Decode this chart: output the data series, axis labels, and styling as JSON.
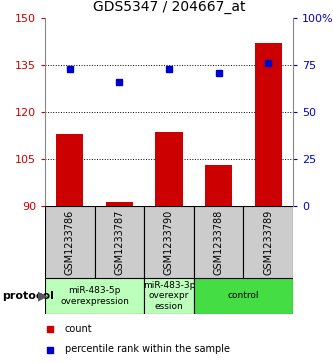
{
  "title": "GDS5347 / 204667_at",
  "samples": [
    "GSM1233786",
    "GSM1233787",
    "GSM1233790",
    "GSM1233788",
    "GSM1233789"
  ],
  "count_values": [
    113.0,
    91.2,
    113.5,
    103.0,
    142.0
  ],
  "percentile_values": [
    73,
    66,
    73,
    71,
    76
  ],
  "left_ylim": [
    90,
    150
  ],
  "right_ylim": [
    0,
    100
  ],
  "left_yticks": [
    90,
    105,
    120,
    135,
    150
  ],
  "right_yticks": [
    0,
    25,
    50,
    75,
    100
  ],
  "right_yticklabels": [
    "0",
    "25",
    "50",
    "75",
    "100%"
  ],
  "grid_values": [
    105,
    120,
    135
  ],
  "bar_color": "#cc0000",
  "dot_color": "#0000cc",
  "protocol_groups": [
    {
      "label": "miR-483-5p\noverexpression",
      "start": 0,
      "end": 2,
      "color": "#bbffbb"
    },
    {
      "label": "miR-483-3p\noverexpr\nession",
      "start": 2,
      "end": 3,
      "color": "#bbffbb"
    },
    {
      "label": "control",
      "start": 3,
      "end": 5,
      "color": "#44dd44"
    }
  ],
  "protocol_label": "protocol",
  "legend_count_label": "count",
  "legend_percentile_label": "percentile rank within the sample",
  "sample_box_color": "#cccccc",
  "left_tick_color": "#cc0000",
  "right_tick_color": "#0000cc",
  "title_fontsize": 10,
  "tick_fontsize": 8,
  "sample_fontsize": 7,
  "proto_fontsize": 6.5,
  "legend_fontsize": 7
}
